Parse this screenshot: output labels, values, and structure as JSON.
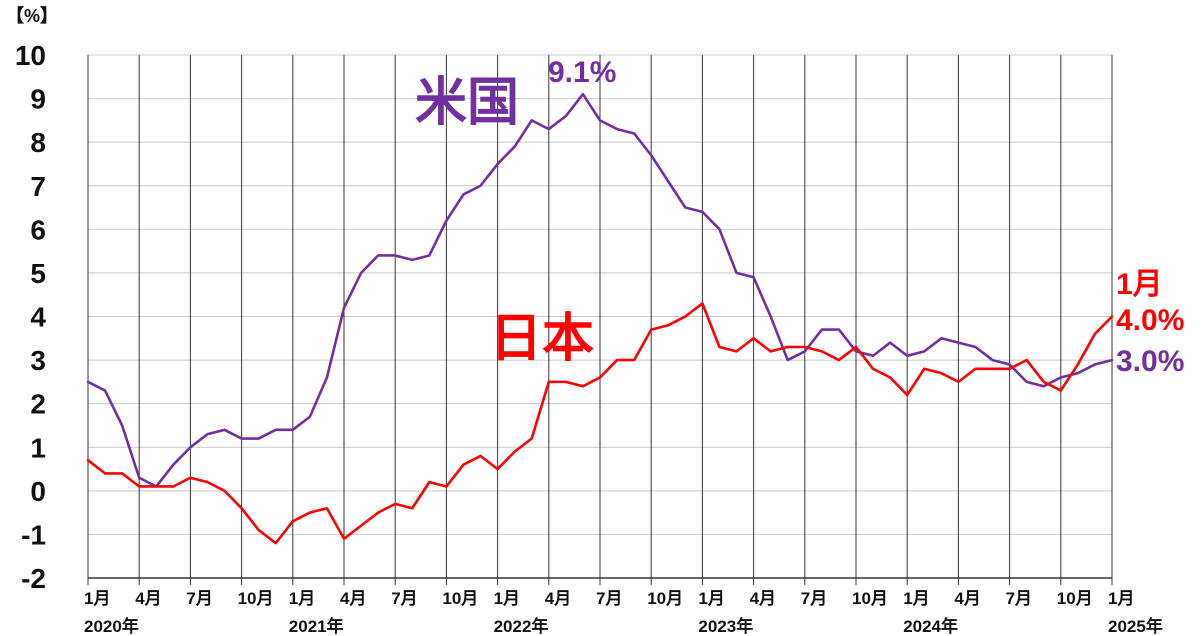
{
  "chart_data": {
    "type": "line",
    "unit_label": "【%】",
    "ylim": [
      -2,
      10
    ],
    "yticks": [
      -2,
      -1,
      0,
      1,
      2,
      3,
      4,
      5,
      6,
      7,
      8,
      9,
      10
    ],
    "grid": true,
    "x_tick_labels": [
      {
        "index": 0,
        "label": "1月"
      },
      {
        "index": 3,
        "label": "4月"
      },
      {
        "index": 6,
        "label": "7月"
      },
      {
        "index": 9,
        "label": "10月"
      },
      {
        "index": 12,
        "label": "1月"
      },
      {
        "index": 15,
        "label": "4月"
      },
      {
        "index": 18,
        "label": "7月"
      },
      {
        "index": 21,
        "label": "10月"
      },
      {
        "index": 24,
        "label": "1月"
      },
      {
        "index": 27,
        "label": "4月"
      },
      {
        "index": 30,
        "label": "7月"
      },
      {
        "index": 33,
        "label": "10月"
      },
      {
        "index": 36,
        "label": "1月"
      },
      {
        "index": 39,
        "label": "4月"
      },
      {
        "index": 42,
        "label": "7月"
      },
      {
        "index": 45,
        "label": "10月"
      },
      {
        "index": 48,
        "label": "1月"
      },
      {
        "index": 51,
        "label": "4月"
      },
      {
        "index": 54,
        "label": "7月"
      },
      {
        "index": 57,
        "label": "10月"
      },
      {
        "index": 60,
        "label": "1月"
      }
    ],
    "year_labels": [
      {
        "index": 0,
        "label": "2020年"
      },
      {
        "index": 12,
        "label": "2021年"
      },
      {
        "index": 24,
        "label": "2022年"
      },
      {
        "index": 36,
        "label": "2023年"
      },
      {
        "index": 48,
        "label": "2024年"
      },
      {
        "index": 60,
        "label": "2025年"
      }
    ],
    "series": [
      {
        "name": "米国",
        "color": "#7030a0",
        "values": [
          2.5,
          2.3,
          1.5,
          0.3,
          0.1,
          0.6,
          1.0,
          1.3,
          1.4,
          1.2,
          1.2,
          1.4,
          1.4,
          1.7,
          2.6,
          4.2,
          5.0,
          5.4,
          5.4,
          5.3,
          5.4,
          6.2,
          6.8,
          7.0,
          7.5,
          7.9,
          8.5,
          8.3,
          8.6,
          9.1,
          8.5,
          8.3,
          8.2,
          7.7,
          7.1,
          6.5,
          6.4,
          6.0,
          5.0,
          4.9,
          4.0,
          3.0,
          3.2,
          3.7,
          3.7,
          3.2,
          3.1,
          3.4,
          3.1,
          3.2,
          3.5,
          3.4,
          3.3,
          3.0,
          2.9,
          2.5,
          2.4,
          2.6,
          2.7,
          2.9,
          3.0
        ]
      },
      {
        "name": "日本",
        "color": "#ff0000",
        "values": [
          0.7,
          0.4,
          0.4,
          0.1,
          0.1,
          0.1,
          0.3,
          0.2,
          0.0,
          -0.4,
          -0.9,
          -1.2,
          -0.7,
          -0.5,
          -0.4,
          -1.1,
          -0.8,
          -0.5,
          -0.3,
          -0.4,
          0.2,
          0.1,
          0.6,
          0.8,
          0.5,
          0.9,
          1.2,
          2.5,
          2.5,
          2.4,
          2.6,
          3.0,
          3.0,
          3.7,
          3.8,
          4.0,
          4.3,
          3.3,
          3.2,
          3.5,
          3.2,
          3.3,
          3.3,
          3.2,
          3.0,
          3.3,
          2.8,
          2.6,
          2.2,
          2.8,
          2.7,
          2.5,
          2.8,
          2.8,
          2.8,
          3.0,
          2.5,
          2.3,
          2.9,
          3.6,
          4.0
        ]
      }
    ],
    "annotations": {
      "us_name": "米国",
      "us_peak": "9.1%",
      "us_last": "3.0%",
      "jp_name": "日本",
      "jp_last_month": "1月",
      "jp_last": "4.0%"
    }
  }
}
